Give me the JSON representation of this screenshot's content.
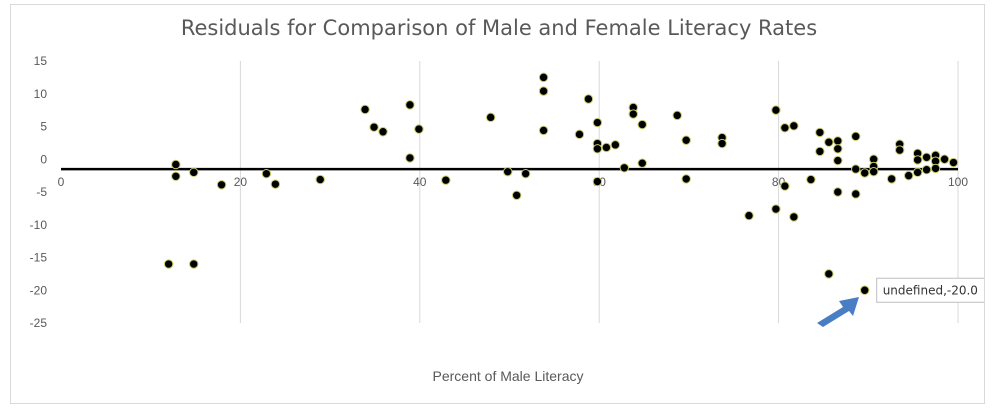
{
  "chart_data": {
    "type": "scatter",
    "title": "Residuals for Comparison of Male and Female Literacy Rates",
    "xlabel": "Percent of Male Literacy",
    "ylabel": "",
    "xlim": [
      0,
      100
    ],
    "ylim": [
      -25,
      15
    ],
    "x_ticks": [
      "0",
      "20",
      "40",
      "60",
      "80",
      "100"
    ],
    "y_ticks": [
      "15",
      "10",
      "5",
      "0",
      "-5",
      "-10",
      "-15",
      "-20",
      "-25"
    ],
    "grid": "vertical",
    "reference_line_y": -1.5,
    "marker_color": "#000000",
    "marker_edge_color": "#c7c96b",
    "series": [
      {
        "points": [
          [
            12,
            -16
          ],
          [
            12.8,
            -0.8
          ],
          [
            12.8,
            -2.6
          ],
          [
            14.8,
            -2
          ],
          [
            14.8,
            -16
          ],
          [
            17.9,
            -3.9
          ],
          [
            22.9,
            -2.2
          ],
          [
            23.9,
            -3.8
          ],
          [
            28.9,
            -3.1
          ],
          [
            33.9,
            7.6
          ],
          [
            34.9,
            4.9
          ],
          [
            35.9,
            4.2
          ],
          [
            38.9,
            8.3
          ],
          [
            38.9,
            0.2
          ],
          [
            39.9,
            4.6
          ],
          [
            42.9,
            -3.2
          ],
          [
            47.9,
            6.4
          ],
          [
            49.8,
            -1.9
          ],
          [
            50.8,
            -5.5
          ],
          [
            51.8,
            -2.2
          ],
          [
            53.8,
            12.5
          ],
          [
            53.8,
            10.4
          ],
          [
            53.8,
            4.4
          ],
          [
            57.8,
            3.8
          ],
          [
            58.8,
            9.2
          ],
          [
            59.8,
            5.6
          ],
          [
            59.8,
            2.4
          ],
          [
            59.8,
            1.6
          ],
          [
            59.8,
            -3.4
          ],
          [
            60.8,
            1.8
          ],
          [
            61.8,
            2.2
          ],
          [
            62.8,
            -1.3
          ],
          [
            63.8,
            7.9
          ],
          [
            63.8,
            6.9
          ],
          [
            64.8,
            5.3
          ],
          [
            64.8,
            -0.6
          ],
          [
            68.7,
            6.7
          ],
          [
            69.7,
            2.9
          ],
          [
            69.7,
            -3
          ],
          [
            73.7,
            3.3
          ],
          [
            73.7,
            2.4
          ],
          [
            76.7,
            -8.6
          ],
          [
            79.7,
            7.5
          ],
          [
            79.7,
            -7.6
          ],
          [
            80.7,
            4.8
          ],
          [
            80.7,
            -4.1
          ],
          [
            81.7,
            5.1
          ],
          [
            81.7,
            -8.8
          ],
          [
            83.6,
            -3.1
          ],
          [
            84.6,
            4.1
          ],
          [
            84.6,
            1.2
          ],
          [
            85.6,
            2.6
          ],
          [
            85.6,
            -17.5
          ],
          [
            86.6,
            2.8
          ],
          [
            86.6,
            1.6
          ],
          [
            86.6,
            -0.2
          ],
          [
            86.6,
            -5
          ],
          [
            88.6,
            3.5
          ],
          [
            88.6,
            -1.5
          ],
          [
            88.6,
            -5.3
          ],
          [
            89.6,
            -2.1
          ],
          [
            89.6,
            -20
          ],
          [
            90.6,
            0
          ],
          [
            90.6,
            -1.1
          ],
          [
            90.6,
            -1.9
          ],
          [
            92.6,
            -3
          ],
          [
            93.5,
            2.3
          ],
          [
            93.5,
            1.4
          ],
          [
            94.5,
            -2.5
          ],
          [
            95.5,
            0.9
          ],
          [
            95.5,
            -0.1
          ],
          [
            95.5,
            -2
          ],
          [
            96.5,
            0.3
          ],
          [
            96.5,
            -1.6
          ],
          [
            97.5,
            0.6
          ],
          [
            97.5,
            -0.3
          ],
          [
            97.5,
            -1.4
          ],
          [
            98.5,
            0
          ],
          [
            99.5,
            -0.5
          ]
        ]
      }
    ],
    "tooltip": {
      "text": "undefined,-20.0",
      "x": 89.6,
      "y": -20
    }
  }
}
